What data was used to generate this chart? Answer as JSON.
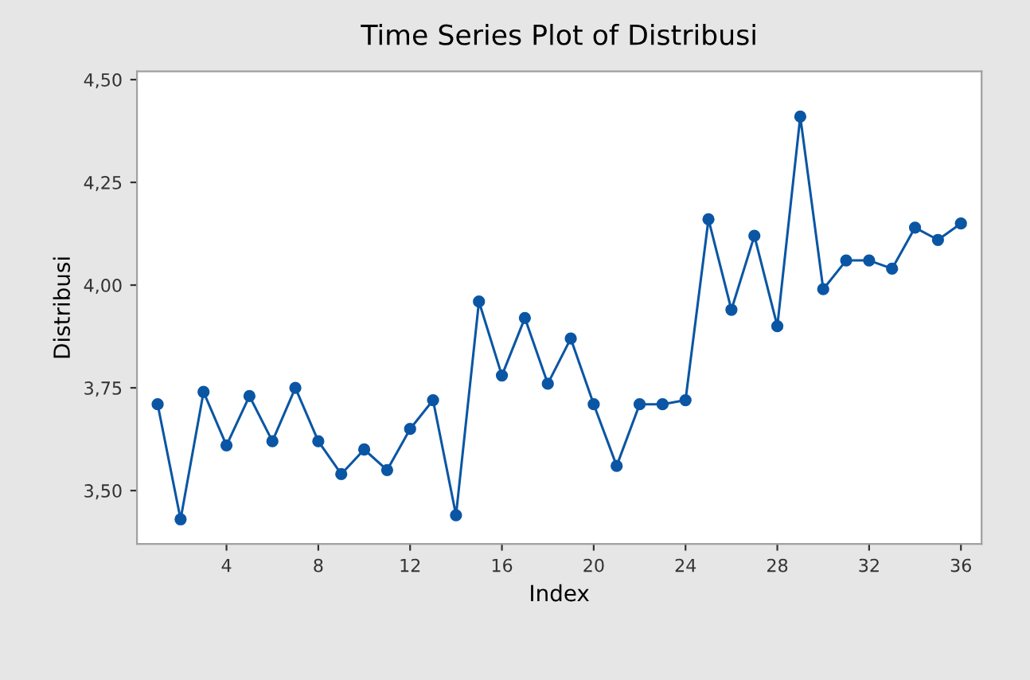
{
  "chart_data": {
    "type": "line",
    "title": "Time Series Plot of Distribusi",
    "xlabel": "Index",
    "ylabel": "Distribusi",
    "x": [
      1,
      2,
      3,
      4,
      5,
      6,
      7,
      8,
      9,
      10,
      11,
      12,
      13,
      14,
      15,
      16,
      17,
      18,
      19,
      20,
      21,
      22,
      23,
      24,
      25,
      26,
      27,
      28,
      29,
      30,
      31,
      32,
      33,
      34,
      35,
      36
    ],
    "series": [
      {
        "color": "#0b56a4",
        "values": [
          3.71,
          3.43,
          3.74,
          3.61,
          3.73,
          3.62,
          3.75,
          3.62,
          3.54,
          3.6,
          3.55,
          3.65,
          3.72,
          3.44,
          3.96,
          3.78,
          3.92,
          3.76,
          3.87,
          3.71,
          3.56,
          3.71,
          3.71,
          3.72,
          4.16,
          3.94,
          4.12,
          3.9,
          4.41,
          3.99,
          4.06,
          4.06,
          4.04,
          4.14,
          4.11,
          4.15
        ]
      }
    ],
    "xlim": [
      0.1,
      36.9
    ],
    "xticks": [
      4,
      8,
      12,
      16,
      20,
      24,
      28,
      32,
      36
    ],
    "ylim": [
      3.37,
      4.52
    ],
    "yticks": [
      {
        "value": 3.5,
        "label": "3,50"
      },
      {
        "value": 3.75,
        "label": "3,75"
      },
      {
        "value": 4.0,
        "label": "4,00"
      },
      {
        "value": 4.25,
        "label": "4,25"
      },
      {
        "value": 4.5,
        "label": "4,50"
      }
    ],
    "grid": false,
    "legend": false,
    "marker": "circle",
    "line_style": "solid"
  }
}
